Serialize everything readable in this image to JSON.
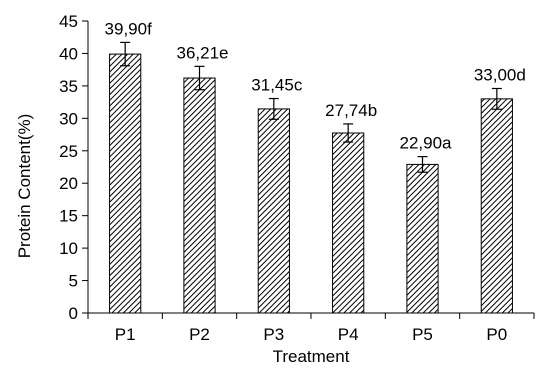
{
  "chart_data": {
    "type": "bar",
    "categories": [
      "P1",
      "P2",
      "P3",
      "P4",
      "P5",
      "P0"
    ],
    "values": [
      39.9,
      36.21,
      31.45,
      27.74,
      22.9,
      33.0
    ],
    "errors": [
      1.8,
      1.8,
      1.6,
      1.4,
      1.2,
      1.6
    ],
    "data_labels": [
      "39,90f",
      "36,21e",
      "31,45c",
      "27,74b",
      "22,90a",
      "33,00d"
    ],
    "xlabel": "Treatment",
    "ylabel": "Protein Content(%)",
    "ylim": [
      0,
      45
    ],
    "yticks": [
      "0",
      "5",
      "10",
      "15",
      "20",
      "25",
      "30",
      "35",
      "40",
      "45"
    ],
    "grid": false,
    "bar_fill": "hatched",
    "colors": {
      "bar_stroke": "#000000",
      "hatch": "#000000",
      "background": "#ffffff"
    }
  }
}
